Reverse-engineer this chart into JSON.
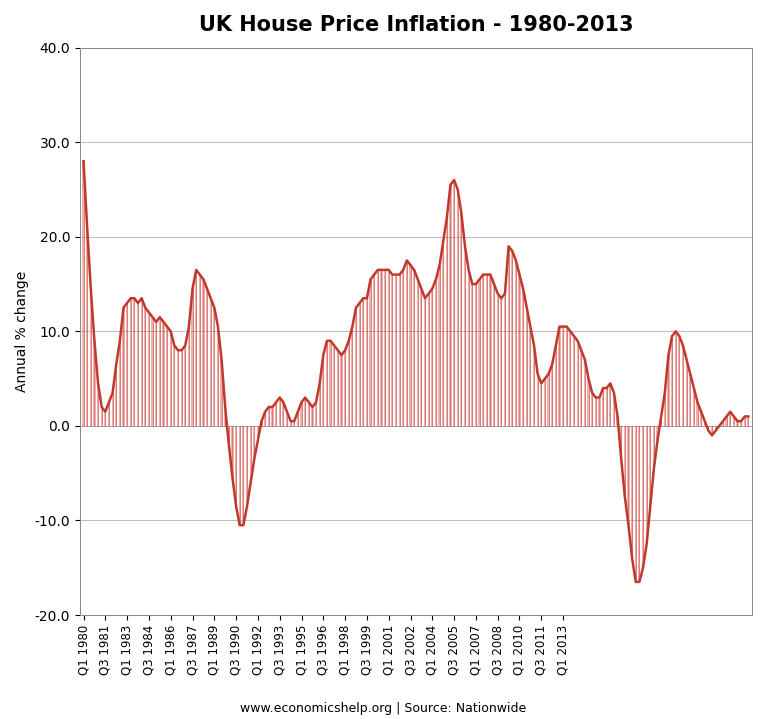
{
  "title": "UK House Price Inflation - 1980-2013",
  "ylabel": "Annual % change",
  "footnote": "www.economicshelp.org | Source: Nationwide",
  "ylim": [
    -20.0,
    40.0
  ],
  "yticks": [
    -20.0,
    -10.0,
    0.0,
    10.0,
    20.0,
    30.0,
    40.0
  ],
  "line_color": "#c0392b",
  "fill_color": "#e07070",
  "fill_alpha": 0.55,
  "bg_color": "#ffffff",
  "values": [
    28.0,
    21.0,
    14.5,
    9.0,
    4.5,
    2.0,
    1.5,
    2.5,
    3.5,
    6.5,
    9.0,
    12.5,
    13.0,
    13.5,
    13.5,
    13.0,
    13.5,
    12.5,
    12.0,
    11.5,
    11.0,
    11.5,
    11.0,
    10.5,
    10.0,
    8.5,
    8.0,
    8.0,
    8.5,
    10.5,
    14.5,
    16.5,
    16.0,
    15.5,
    14.5,
    13.5,
    12.5,
    10.5,
    7.0,
    2.0,
    -2.0,
    -5.5,
    -8.5,
    -10.5,
    -10.5,
    -8.5,
    -6.0,
    -3.5,
    -1.5,
    0.5,
    1.5,
    2.0,
    2.0,
    2.5,
    3.0,
    2.5,
    1.5,
    0.5,
    0.5,
    1.5,
    2.5,
    3.0,
    2.5,
    2.0,
    2.5,
    4.5,
    7.5,
    9.0,
    9.0,
    8.5,
    8.0,
    7.5,
    8.0,
    9.0,
    10.5,
    12.5,
    13.0,
    13.5,
    13.5,
    15.5,
    16.0,
    16.5,
    16.5,
    16.5,
    16.5,
    16.0,
    16.0,
    16.0,
    16.5,
    17.5,
    17.0,
    16.5,
    15.5,
    14.5,
    13.5,
    14.0,
    14.5,
    15.5,
    17.0,
    19.5,
    22.0,
    25.5,
    26.0,
    25.0,
    22.5,
    19.0,
    16.5,
    15.0,
    15.0,
    15.5,
    16.0,
    16.0,
    16.0,
    15.0,
    14.0,
    13.5,
    14.0,
    19.0,
    18.5,
    17.5,
    16.0,
    14.5,
    12.5,
    10.5,
    8.5,
    5.5,
    4.5,
    5.0,
    5.5,
    6.5,
    8.5,
    10.5,
    10.5,
    10.5,
    10.0,
    9.5,
    9.0,
    8.0,
    7.0,
    5.0,
    3.5,
    3.0,
    3.0,
    4.0,
    4.0,
    4.5,
    3.5,
    1.0,
    -3.5,
    -7.5,
    -10.5,
    -14.0,
    -16.5,
    -16.5,
    -15.0,
    -12.5,
    -8.5,
    -4.5,
    -1.5,
    1.0,
    3.5,
    7.5,
    9.5,
    10.0,
    9.5,
    8.5,
    7.0,
    5.5,
    4.0,
    2.5,
    1.5,
    0.5,
    -0.5,
    -1.0,
    -0.5,
    0.0,
    0.5,
    1.0,
    1.5,
    1.0,
    0.5,
    0.5,
    1.0,
    1.0
  ],
  "xtick_labels": [
    "Q1 1980",
    "Q3 1981",
    "Q1 1983",
    "Q3 1984",
    "Q1 1986",
    "Q3 1987",
    "Q1 1989",
    "Q3 1990",
    "Q1 1992",
    "Q3 1993",
    "Q1 1995",
    "Q3 1996",
    "Q1 1998",
    "Q3 1999",
    "Q1 2001",
    "Q3 2002",
    "Q1 2004",
    "Q3 2005",
    "Q1 2007",
    "Q3 2008",
    "Q1 2010",
    "Q3 2011",
    "Q1 2013"
  ],
  "xtick_positions": [
    0,
    6,
    12,
    18,
    24,
    30,
    36,
    42,
    48,
    54,
    60,
    66,
    72,
    78,
    84,
    90,
    96,
    102,
    108,
    114,
    120,
    126,
    132
  ]
}
